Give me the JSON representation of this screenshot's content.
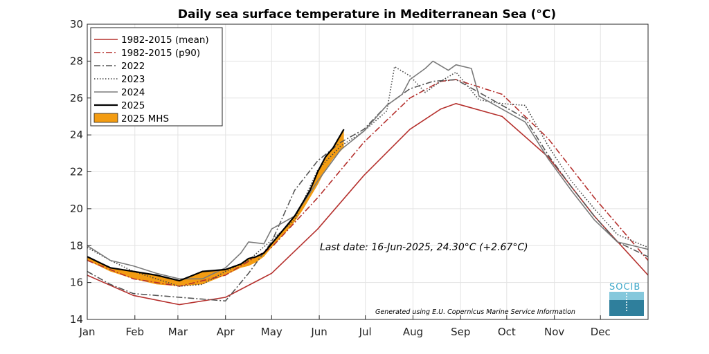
{
  "chart_data": {
    "type": "line",
    "title": "Daily sea surface temperature in Mediterranean Sea (°C)",
    "xlabel": "",
    "ylabel": "",
    "ylim": [
      14,
      30
    ],
    "xlim": [
      0,
      365
    ],
    "yticks": [
      14,
      16,
      18,
      20,
      22,
      24,
      26,
      28,
      30
    ],
    "month_ticks": [
      {
        "label": "Jan",
        "day": 0
      },
      {
        "label": "Feb",
        "day": 31
      },
      {
        "label": "Mar",
        "day": 59
      },
      {
        "label": "Apr",
        "day": 90
      },
      {
        "label": "May",
        "day": 120
      },
      {
        "label": "Jun",
        "day": 151
      },
      {
        "label": "Jul",
        "day": 181
      },
      {
        "label": "Aug",
        "day": 212
      },
      {
        "label": "Sep",
        "day": 243
      },
      {
        "label": "Oct",
        "day": 273
      },
      {
        "label": "Nov",
        "day": 304
      },
      {
        "label": "Dec",
        "day": 334
      }
    ],
    "grid": true,
    "legend_position": "top-left",
    "series": [
      {
        "name": "1982-2015 (mean)",
        "color": "#b5302d",
        "style": "solid",
        "x": [
          0,
          30,
          60,
          90,
          120,
          150,
          180,
          210,
          230,
          240,
          270,
          300,
          330,
          365
        ],
        "y": [
          16.4,
          15.3,
          14.8,
          15.2,
          16.5,
          18.9,
          21.8,
          24.3,
          25.4,
          25.7,
          25.0,
          22.8,
          19.6,
          16.4
        ]
      },
      {
        "name": "1982-2015 (p90)",
        "color": "#b5302d",
        "style": "dashdot",
        "x": [
          0,
          30,
          60,
          90,
          120,
          150,
          180,
          210,
          230,
          240,
          270,
          300,
          330,
          365
        ],
        "y": [
          17.2,
          16.2,
          15.8,
          16.4,
          17.9,
          20.6,
          23.6,
          26.0,
          26.9,
          27.0,
          26.2,
          23.8,
          20.6,
          17.2
        ]
      },
      {
        "name": "2022",
        "color": "#555555",
        "style": "dashdot",
        "x": [
          0,
          15,
          30,
          45,
          60,
          75,
          90,
          105,
          120,
          135,
          150,
          165,
          180,
          195,
          210,
          225,
          240,
          255,
          270,
          285,
          300,
          315,
          330,
          345,
          365
        ],
        "y": [
          16.6,
          15.9,
          15.4,
          15.3,
          15.2,
          15.1,
          15.0,
          16.5,
          18.2,
          21.0,
          22.6,
          23.6,
          24.3,
          25.6,
          26.5,
          26.9,
          27.0,
          26.3,
          25.6,
          24.9,
          22.9,
          21.2,
          19.6,
          18.2,
          17.4
        ]
      },
      {
        "name": "2023",
        "color": "#444444",
        "style": "dotted",
        "x": [
          0,
          15,
          30,
          45,
          60,
          75,
          90,
          105,
          120,
          135,
          150,
          165,
          180,
          195,
          200,
          210,
          220,
          230,
          240,
          255,
          270,
          285,
          300,
          315,
          330,
          345,
          365
        ],
        "y": [
          17.9,
          17.2,
          16.6,
          16.2,
          15.8,
          15.9,
          16.6,
          17.2,
          18.3,
          19.4,
          22.1,
          23.4,
          24.2,
          25.3,
          27.7,
          27.2,
          26.3,
          26.9,
          27.4,
          25.9,
          25.7,
          25.6,
          23.4,
          21.5,
          20.0,
          18.6,
          17.9
        ]
      },
      {
        "name": "2024",
        "color": "#7a7a7a",
        "style": "solid",
        "x": [
          0,
          15,
          30,
          45,
          60,
          75,
          90,
          100,
          105,
          115,
          120,
          135,
          150,
          165,
          180,
          195,
          205,
          210,
          220,
          225,
          235,
          240,
          250,
          255,
          270,
          285,
          300,
          315,
          330,
          345,
          365
        ],
        "y": [
          18.0,
          17.2,
          16.9,
          16.5,
          16.2,
          16.2,
          16.8,
          17.6,
          18.2,
          18.1,
          18.9,
          19.6,
          21.5,
          23.2,
          24.2,
          25.6,
          26.2,
          27.0,
          27.6,
          28.0,
          27.5,
          27.8,
          27.6,
          26.1,
          25.4,
          24.7,
          22.7,
          21.0,
          19.4,
          18.2,
          17.8
        ]
      },
      {
        "name": "2025",
        "color": "#000000",
        "style": "solid",
        "x": [
          0,
          15,
          30,
          45,
          60,
          75,
          90,
          100,
          105,
          110,
          115,
          120,
          130,
          135,
          140,
          145,
          150,
          155,
          160,
          167
        ],
        "y": [
          17.4,
          16.8,
          16.6,
          16.4,
          16.1,
          16.6,
          16.7,
          17.0,
          17.3,
          17.4,
          17.6,
          18.1,
          19.1,
          19.6,
          20.3,
          21.0,
          22.0,
          22.8,
          23.3,
          24.3
        ]
      }
    ],
    "mhs_band": {
      "name": "2025 MHS",
      "color": "#f39c12",
      "x": [
        0,
        15,
        30,
        45,
        60,
        75,
        90,
        100,
        105,
        110,
        115,
        120,
        130,
        135,
        140,
        145,
        150,
        155,
        160,
        167
      ],
      "upper": [
        17.4,
        16.8,
        16.6,
        16.4,
        16.1,
        16.6,
        16.7,
        17.0,
        17.3,
        17.4,
        17.6,
        18.1,
        19.1,
        19.6,
        20.3,
        21.0,
        22.0,
        22.8,
        23.3,
        24.3
      ],
      "lower": [
        17.2,
        16.6,
        16.2,
        15.9,
        15.8,
        15.9,
        16.4,
        16.8,
        16.9,
        17.1,
        17.4,
        17.9,
        18.8,
        19.3,
        19.9,
        20.6,
        21.3,
        22.1,
        22.7,
        23.3
      ]
    },
    "annotation": "Last date: 16-Jun-2025, 24.30°C (+2.67°C)",
    "credit": "Generated using E.U. Copernicus Marine Service Information",
    "logo": "SOCIB"
  }
}
